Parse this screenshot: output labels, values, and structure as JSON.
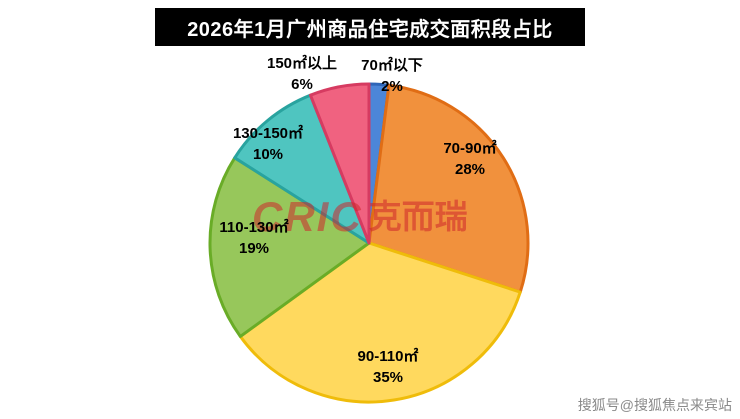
{
  "title": "2026年1月广州商品住宅成交面积段占比",
  "chart_data": {
    "type": "pie",
    "title": "2026年1月广州商品住宅成交面积段占比",
    "start_angle_deg": -90,
    "direction": "clockwise",
    "legend_position": "none",
    "labels_on_chart": true,
    "slices": [
      {
        "label": "70㎡以下",
        "value": 2,
        "percent": "2%",
        "color": "#4C86D8",
        "border": "#2F66B8"
      },
      {
        "label": "70-90㎡",
        "value": 28,
        "percent": "28%",
        "color": "#F1913D",
        "border": "#E06D15"
      },
      {
        "label": "90-110㎡",
        "value": 35,
        "percent": "35%",
        "color": "#FFD95E",
        "border": "#EFBC0A"
      },
      {
        "label": "110-130㎡",
        "value": 19,
        "percent": "19%",
        "color": "#97C75B",
        "border": "#69AC27"
      },
      {
        "label": "130-150㎡",
        "value": 10,
        "percent": "10%",
        "color": "#4FC5C0",
        "border": "#29A39F"
      },
      {
        "label": "150㎡以上",
        "value": 6,
        "percent": "6%",
        "color": "#F06280",
        "border": "#D63B61"
      }
    ]
  },
  "watermarks": {
    "center_logo": "CRIC",
    "center_logo_cn": "克而瑞",
    "bottom_right": "搜狐号@搜狐焦点来宾站"
  }
}
